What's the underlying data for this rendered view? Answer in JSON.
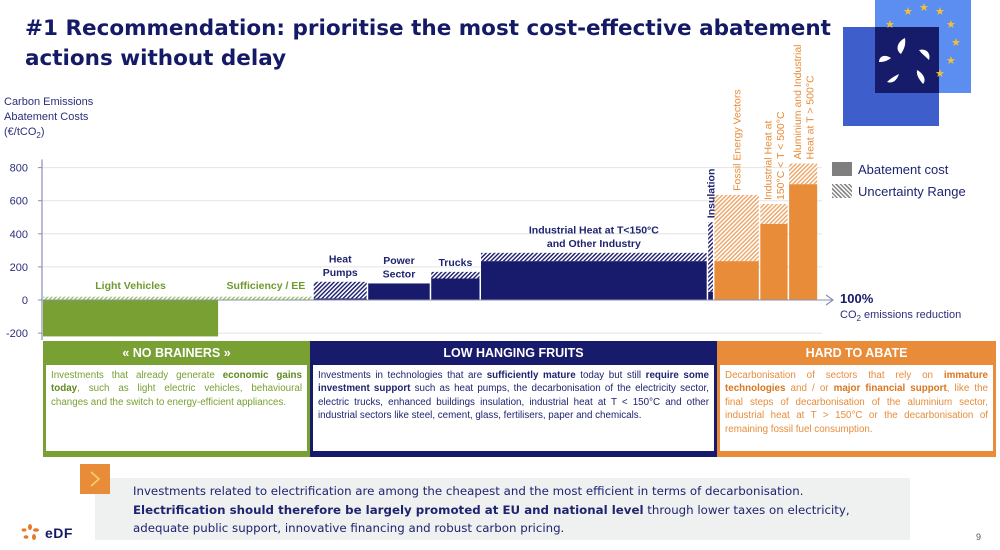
{
  "title": "#1 Recommendation: prioritise the most cost-effective abatement actions without delay",
  "y_axis_label_lines": [
    "Carbon Emissions",
    "Abatement Costs",
    "(€/tCO",
    "2",
    ")"
  ],
  "legend": {
    "abatement": "Abatement cost",
    "uncertainty": "Uncertainty Range"
  },
  "x_axis_end": {
    "label": "100%",
    "sub_prefix": "CO",
    "sub_index": "2",
    "sub_suffix": " emissions reduction"
  },
  "colors": {
    "green": "#78a032",
    "navy": "#181b6b",
    "orange": "#e88c3a",
    "title": "#141a66"
  },
  "chart_data": {
    "type": "bar",
    "title": "",
    "ylabel": "Carbon Emissions Abatement Costs (€/tCO2)",
    "xlabel": "CO2 emissions reduction",
    "ylim": [
      -250,
      850
    ],
    "xlim_percent": [
      0,
      100
    ],
    "yticks": [
      -200,
      0,
      200,
      400,
      600,
      800
    ],
    "ytick_labels": [
      "-200",
      "0",
      "200",
      "400",
      "600",
      "800"
    ],
    "grid": true,
    "legend_position": "right",
    "series": [
      {
        "name": "Light Vehicles",
        "group": "green",
        "width_pct": 22.7,
        "value": -220,
        "uncertainty_top": 20,
        "label_lines": [
          "Light Vehicles"
        ],
        "label_orient": "horizontal"
      },
      {
        "name": "Sufficiency / EE",
        "group": "green",
        "width_pct": 12.1,
        "value": 0,
        "uncertainty_top": 20,
        "label_lines": [
          "Sufficiency / EE"
        ],
        "label_orient": "horizontal"
      },
      {
        "name": "Heat Pumps",
        "group": "navy",
        "width_pct": 7.0,
        "value": 10,
        "uncertainty_top": 110,
        "label_lines": [
          "Heat",
          "Pumps"
        ],
        "label_orient": "horizontal"
      },
      {
        "name": "Power Sector",
        "group": "navy",
        "width_pct": 8.1,
        "value": 100,
        "uncertainty_top": 100,
        "label_lines": [
          "Power",
          "Sector"
        ],
        "label_orient": "horizontal"
      },
      {
        "name": "Trucks",
        "group": "navy",
        "width_pct": 6.4,
        "value": 130,
        "uncertainty_top": 170,
        "label_lines": [
          "Trucks"
        ],
        "label_orient": "horizontal"
      },
      {
        "name": "Industrial Heat at T<150°C and Other Industry",
        "group": "navy",
        "width_pct": 29.2,
        "value": 235,
        "uncertainty_top": 285,
        "label_lines": [
          "Industrial Heat at T<150°C",
          "and Other Industry"
        ],
        "label_orient": "horizontal"
      },
      {
        "name": "Insulation",
        "group": "navy",
        "width_pct": 0.8,
        "value": 50,
        "uncertainty_top": 470,
        "label_lines": [
          "Insulation"
        ],
        "label_orient": "vertical"
      },
      {
        "name": "Fossil Energy Vectors",
        "group": "orange",
        "width_pct": 5.9,
        "value": 235,
        "uncertainty_top": 635,
        "label_lines": [
          "Fossil Energy Vectors"
        ],
        "label_orient": "vertical"
      },
      {
        "name": "Industrial Heat at 150°C < T < 500°C",
        "group": "orange",
        "width_pct": 3.7,
        "value": 460,
        "uncertainty_top": 580,
        "label_lines": [
          "Industrial Heat at",
          "150°C < T < 500°C"
        ],
        "label_orient": "vertical"
      },
      {
        "name": "Aluminium and Industrial Heat at T > 500°C",
        "group": "orange",
        "width_pct": 3.8,
        "value": 700,
        "uncertainty_top": 825,
        "label_lines": [
          "Aluminium and Industrial",
          "Heat at T > 500°C"
        ],
        "label_orient": "vertical"
      }
    ]
  },
  "categories": [
    {
      "heading": "« NO BRAINERS »",
      "parts": [
        {
          "t": "Investments that already generate ",
          "b": false
        },
        {
          "t": "economic gains today",
          "b": true
        },
        {
          "t": ", such as light electric vehicles, behavioural changes and the switch to energy-efficient appliances.",
          "b": false
        }
      ]
    },
    {
      "heading": "LOW HANGING FRUITS",
      "parts": [
        {
          "t": "Investments in technologies that are ",
          "b": false
        },
        {
          "t": "sufficiently mature",
          "b": true
        },
        {
          "t": " today but still ",
          "b": false
        },
        {
          "t": "require some investment support",
          "b": true
        },
        {
          "t": " such as heat pumps, the decarbonisation of the electricity sector, electric trucks, enhanced buildings insulation, industrial heat at T < 150°C and other industrial sectors like steel, cement, glass, fertilisers, paper and chemicals.",
          "b": false
        }
      ]
    },
    {
      "heading": "HARD TO ABATE",
      "parts": [
        {
          "t": "Decarbonisation of sectors that rely on ",
          "b": false
        },
        {
          "t": "immature technologies",
          "b": true
        },
        {
          "t": " and / or ",
          "b": false
        },
        {
          "t": "major financial support",
          "b": true
        },
        {
          "t": ", like the final steps of decarbonisation of the aluminium sector, industrial heat at T > 150°C or the decarbonisation of remaining fossil fuel consumption.",
          "b": false
        }
      ]
    }
  ],
  "note": {
    "line1": "Investments related to electrification are among the cheapest and the most efficient in terms of decarbonisation.",
    "line2_bold": "Electrification should therefore be largely promoted at EU and national level",
    "line2_rest": " through lower taxes on electricity, adequate public support, innovative financing and robust carbon pricing."
  },
  "footer": {
    "brand": "eDF",
    "page_number": "9"
  },
  "icons": {
    "note": "chevron-right-icon",
    "logo": "eu-edf-logo",
    "brand": "edf-swirl-icon"
  }
}
